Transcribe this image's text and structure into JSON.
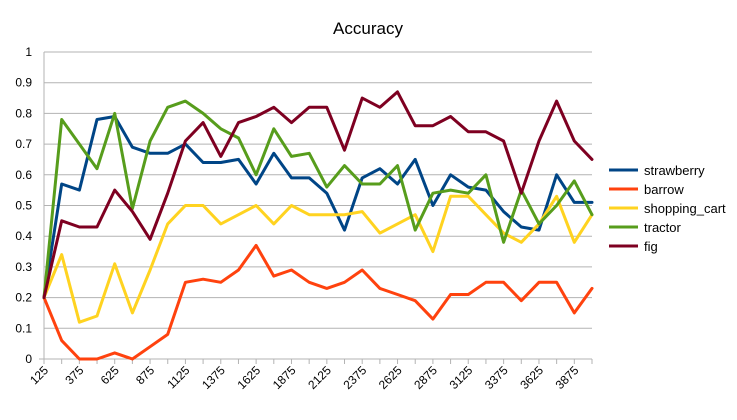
{
  "chart_data": {
    "type": "line",
    "title": "Accuracy",
    "xlabel": "",
    "ylabel": "",
    "ylim": [
      0,
      1
    ],
    "yticks": [
      "0",
      "0.1",
      "0.2",
      "0.3",
      "0.4",
      "0.5",
      "0.6",
      "0.7",
      "0.8",
      "0.9",
      "1"
    ],
    "x": [
      125,
      250,
      375,
      500,
      625,
      750,
      875,
      1000,
      1125,
      1250,
      1375,
      1500,
      1625,
      1750,
      1875,
      2000,
      2125,
      2250,
      2375,
      2500,
      2625,
      2750,
      2875,
      3000,
      3125,
      3250,
      3375,
      3500,
      3625,
      3750,
      3875,
      4000
    ],
    "xtick_labels": [
      "125",
      "375",
      "625",
      "875",
      "1125",
      "1375",
      "1625",
      "1875",
      "2125",
      "2375",
      "2625",
      "2875",
      "3125",
      "3375",
      "3625",
      "3875"
    ],
    "grid": "horizontal",
    "legend_position": "right",
    "series": [
      {
        "name": "strawberry",
        "color": "#004586",
        "values": [
          0.2,
          0.57,
          0.55,
          0.78,
          0.79,
          0.69,
          0.67,
          0.67,
          0.7,
          0.64,
          0.64,
          0.65,
          0.57,
          0.67,
          0.59,
          0.59,
          0.54,
          0.42,
          0.59,
          0.62,
          0.57,
          0.65,
          0.5,
          0.6,
          0.56,
          0.55,
          0.48,
          0.43,
          0.42,
          0.6,
          0.51,
          0.51
        ]
      },
      {
        "name": "barrow",
        "color": "#ff420e",
        "values": [
          0.2,
          0.06,
          0.0,
          0.0,
          0.02,
          0.0,
          0.04,
          0.08,
          0.25,
          0.26,
          0.25,
          0.29,
          0.37,
          0.27,
          0.29,
          0.25,
          0.23,
          0.25,
          0.29,
          0.23,
          0.21,
          0.19,
          0.13,
          0.21,
          0.21,
          0.25,
          0.25,
          0.19,
          0.25,
          0.25,
          0.15,
          0.23
        ]
      },
      {
        "name": "shopping_cart",
        "color": "#ffd320",
        "values": [
          0.2,
          0.34,
          0.12,
          0.14,
          0.31,
          0.15,
          0.29,
          0.44,
          0.5,
          0.5,
          0.44,
          0.47,
          0.5,
          0.44,
          0.5,
          0.47,
          0.47,
          0.47,
          0.48,
          0.41,
          0.44,
          0.47,
          0.35,
          0.53,
          0.53,
          0.47,
          0.41,
          0.38,
          0.44,
          0.53,
          0.38,
          0.47
        ]
      },
      {
        "name": "tractor",
        "color": "#579d1c",
        "values": [
          0.2,
          0.78,
          0.7,
          0.62,
          0.8,
          0.49,
          0.71,
          0.82,
          0.84,
          0.8,
          0.75,
          0.72,
          0.6,
          0.75,
          0.66,
          0.67,
          0.56,
          0.63,
          0.57,
          0.57,
          0.63,
          0.42,
          0.54,
          0.55,
          0.54,
          0.6,
          0.38,
          0.55,
          0.44,
          0.5,
          0.58,
          0.47
        ]
      },
      {
        "name": "fig",
        "color": "#7e0021",
        "values": [
          0.2,
          0.45,
          0.43,
          0.43,
          0.55,
          0.48,
          0.39,
          0.54,
          0.71,
          0.77,
          0.66,
          0.77,
          0.79,
          0.82,
          0.77,
          0.82,
          0.82,
          0.68,
          0.85,
          0.82,
          0.87,
          0.76,
          0.76,
          0.79,
          0.74,
          0.74,
          0.71,
          0.54,
          0.71,
          0.84,
          0.71,
          0.65
        ]
      }
    ]
  }
}
